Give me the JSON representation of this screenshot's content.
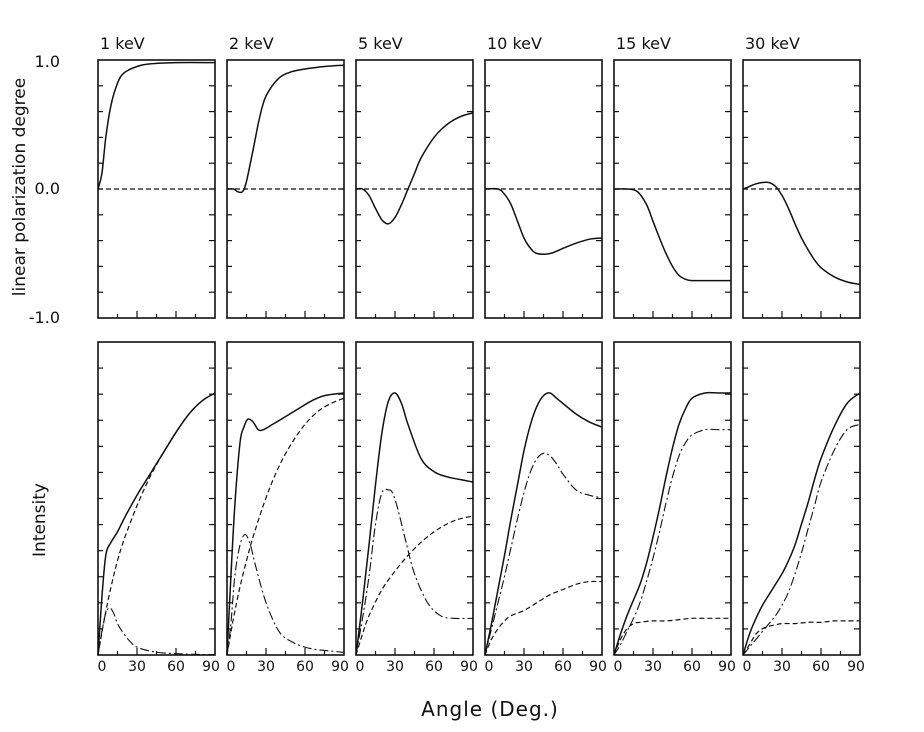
{
  "chart_data": {
    "type": "line",
    "xlabel": "Angle (Deg.)",
    "xticks": [
      "0",
      "30",
      "60",
      "90"
    ],
    "xlim": [
      0,
      90
    ],
    "top_row": {
      "ylabel": "linear polarization degree",
      "ylim": [
        -1.0,
        1.0
      ],
      "ytick_labels": [
        "1.0",
        "0.0",
        "-1.0"
      ]
    },
    "bottom_row": {
      "ylabel": "Intensity",
      "ylim": [
        0,
        1
      ]
    },
    "panels": [
      {
        "title": "1 keV",
        "polarization": {
          "x": [
            0,
            3,
            6,
            10,
            15,
            20,
            30,
            40,
            60,
            90
          ],
          "y": [
            0.0,
            0.12,
            0.4,
            0.65,
            0.82,
            0.9,
            0.95,
            0.97,
            0.98,
            0.98
          ]
        },
        "intensity": [
          {
            "style": "solid",
            "x": [
              0,
              3,
              6,
              10,
              15,
              20,
              30,
              40,
              50,
              60,
              70,
              80,
              90
            ],
            "y": [
              0,
              0.22,
              0.38,
              0.43,
              0.47,
              0.52,
              0.61,
              0.69,
              0.77,
              0.85,
              0.92,
              0.97,
              1.0
            ]
          },
          {
            "style": "dashed",
            "x": [
              0,
              5,
              10,
              15,
              20,
              30,
              40,
              50,
              60,
              70,
              80,
              90
            ],
            "y": [
              0,
              0.14,
              0.26,
              0.36,
              0.44,
              0.57,
              0.68,
              0.77,
              0.85,
              0.92,
              0.97,
              1.0
            ]
          },
          {
            "style": "dashdot",
            "x": [
              0,
              3,
              6,
              9,
              12,
              15,
              20,
              25,
              30,
              40,
              50,
              60,
              70,
              80,
              90
            ],
            "y": [
              0,
              0.09,
              0.16,
              0.18,
              0.16,
              0.12,
              0.08,
              0.05,
              0.03,
              0.015,
              0.008,
              0.005,
              0.003,
              0.002,
              0.002
            ]
          }
        ]
      },
      {
        "title": "2 keV",
        "polarization": {
          "x": [
            0,
            5,
            8,
            12,
            15,
            20,
            25,
            30,
            40,
            50,
            60,
            75,
            90
          ],
          "y": [
            0.0,
            0.0,
            -0.02,
            -0.02,
            0.06,
            0.3,
            0.55,
            0.72,
            0.86,
            0.91,
            0.93,
            0.95,
            0.96
          ]
        },
        "intensity": [
          {
            "style": "solid",
            "x": [
              0,
              3,
              6,
              10,
              13,
              16,
              20,
              24,
              28,
              35,
              45,
              55,
              65,
              75,
              90
            ],
            "y": [
              0,
              0.3,
              0.57,
              0.81,
              0.87,
              0.9,
              0.89,
              0.86,
              0.86,
              0.88,
              0.91,
              0.94,
              0.97,
              0.99,
              1.0
            ]
          },
          {
            "style": "dashed",
            "x": [
              0,
              5,
              10,
              15,
              20,
              30,
              40,
              50,
              60,
              70,
              80,
              90
            ],
            "y": [
              0,
              0.14,
              0.26,
              0.36,
              0.45,
              0.6,
              0.72,
              0.81,
              0.88,
              0.93,
              0.96,
              0.98
            ]
          },
          {
            "style": "dashdot",
            "x": [
              0,
              3,
              6,
              10,
              14,
              18,
              22,
              30,
              40,
              50,
              60,
              70,
              80,
              90
            ],
            "y": [
              0,
              0.12,
              0.3,
              0.42,
              0.46,
              0.42,
              0.34,
              0.2,
              0.09,
              0.05,
              0.03,
              0.02,
              0.015,
              0.01
            ]
          }
        ]
      },
      {
        "title": "5 keV",
        "polarization": {
          "x": [
            0,
            5,
            10,
            15,
            20,
            25,
            30,
            35,
            40,
            45,
            50,
            60,
            70,
            80,
            90
          ],
          "y": [
            0.0,
            0.0,
            -0.05,
            -0.15,
            -0.24,
            -0.27,
            -0.22,
            -0.12,
            0.0,
            0.12,
            0.24,
            0.4,
            0.5,
            0.56,
            0.59
          ]
        },
        "intensity": [
          {
            "style": "solid",
            "x": [
              0,
              5,
              10,
              15,
              20,
              25,
              30,
              35,
              40,
              50,
              60,
              70,
              80,
              90
            ],
            "y": [
              0,
              0.2,
              0.42,
              0.65,
              0.85,
              0.97,
              1.0,
              0.96,
              0.88,
              0.75,
              0.7,
              0.68,
              0.67,
              0.66
            ]
          },
          {
            "style": "dashdot",
            "x": [
              0,
              5,
              10,
              15,
              20,
              25,
              28,
              32,
              38,
              45,
              55,
              65,
              75,
              90
            ],
            "y": [
              0,
              0.14,
              0.3,
              0.5,
              0.62,
              0.63,
              0.62,
              0.56,
              0.44,
              0.31,
              0.2,
              0.15,
              0.14,
              0.14
            ]
          },
          {
            "style": "dashed",
            "x": [
              0,
              5,
              10,
              20,
              30,
              40,
              50,
              60,
              70,
              80,
              90
            ],
            "y": [
              0,
              0.08,
              0.15,
              0.25,
              0.32,
              0.38,
              0.43,
              0.47,
              0.5,
              0.52,
              0.53
            ]
          }
        ]
      },
      {
        "title": "10 keV",
        "polarization": {
          "x": [
            0,
            10,
            15,
            20,
            25,
            30,
            35,
            40,
            50,
            60,
            70,
            80,
            90
          ],
          "y": [
            0.0,
            0.0,
            -0.04,
            -0.12,
            -0.25,
            -0.38,
            -0.46,
            -0.5,
            -0.5,
            -0.46,
            -0.42,
            -0.39,
            -0.38
          ]
        },
        "intensity": [
          {
            "style": "solid",
            "x": [
              0,
              5,
              10,
              15,
              20,
              25,
              30,
              35,
              40,
              45,
              50,
              55,
              60,
              70,
              80,
              90
            ],
            "y": [
              0,
              0.12,
              0.25,
              0.38,
              0.52,
              0.65,
              0.78,
              0.88,
              0.95,
              0.99,
              1.0,
              0.98,
              0.96,
              0.92,
              0.89,
              0.87
            ]
          },
          {
            "style": "dashdot",
            "x": [
              0,
              5,
              10,
              15,
              20,
              25,
              30,
              35,
              40,
              45,
              50,
              55,
              60,
              70,
              80,
              90
            ],
            "y": [
              0,
              0.1,
              0.2,
              0.3,
              0.41,
              0.52,
              0.62,
              0.7,
              0.75,
              0.77,
              0.76,
              0.73,
              0.69,
              0.63,
              0.61,
              0.6
            ]
          },
          {
            "style": "dashed",
            "x": [
              0,
              5,
              10,
              15,
              20,
              30,
              40,
              50,
              60,
              70,
              80,
              90
            ],
            "y": [
              0,
              0.06,
              0.1,
              0.13,
              0.15,
              0.17,
              0.2,
              0.23,
              0.25,
              0.27,
              0.28,
              0.28
            ]
          }
        ]
      },
      {
        "title": "15 keV",
        "polarization": {
          "x": [
            0,
            10,
            18,
            25,
            30,
            35,
            40,
            45,
            50,
            55,
            60,
            70,
            80,
            90
          ],
          "y": [
            0.0,
            0.0,
            -0.02,
            -0.12,
            -0.25,
            -0.38,
            -0.5,
            -0.6,
            -0.67,
            -0.7,
            -0.71,
            -0.71,
            -0.71,
            -0.71
          ]
        },
        "intensity": [
          {
            "style": "solid",
            "x": [
              0,
              5,
              10,
              15,
              20,
              25,
              30,
              35,
              40,
              45,
              50,
              55,
              60,
              70,
              80,
              90
            ],
            "y": [
              0,
              0.08,
              0.15,
              0.21,
              0.27,
              0.35,
              0.45,
              0.56,
              0.68,
              0.79,
              0.88,
              0.94,
              0.98,
              1.0,
              1.0,
              1.0
            ]
          },
          {
            "style": "dashdot",
            "x": [
              0,
              5,
              10,
              15,
              20,
              25,
              30,
              35,
              40,
              45,
              50,
              55,
              60,
              70,
              80,
              90
            ],
            "y": [
              0,
              0.04,
              0.09,
              0.14,
              0.2,
              0.28,
              0.37,
              0.47,
              0.58,
              0.68,
              0.76,
              0.81,
              0.84,
              0.86,
              0.86,
              0.86
            ]
          },
          {
            "style": "dashed",
            "x": [
              0,
              5,
              10,
              15,
              20,
              30,
              40,
              50,
              60,
              70,
              80,
              90
            ],
            "y": [
              0,
              0.06,
              0.1,
              0.12,
              0.125,
              0.13,
              0.13,
              0.135,
              0.14,
              0.14,
              0.14,
              0.14
            ]
          }
        ]
      },
      {
        "title": "30 keV",
        "polarization": {
          "x": [
            0,
            5,
            10,
            15,
            20,
            25,
            30,
            35,
            40,
            45,
            50,
            55,
            60,
            70,
            80,
            90
          ],
          "y": [
            0.0,
            0.02,
            0.04,
            0.05,
            0.05,
            0.02,
            -0.05,
            -0.15,
            -0.27,
            -0.38,
            -0.47,
            -0.55,
            -0.61,
            -0.68,
            -0.72,
            -0.74
          ]
        },
        "intensity": [
          {
            "style": "solid",
            "x": [
              0,
              5,
              10,
              15,
              20,
              25,
              30,
              35,
              40,
              45,
              50,
              55,
              60,
              70,
              80,
              90
            ],
            "y": [
              0,
              0.08,
              0.14,
              0.19,
              0.23,
              0.27,
              0.31,
              0.36,
              0.42,
              0.5,
              0.58,
              0.67,
              0.75,
              0.87,
              0.96,
              1.0
            ]
          },
          {
            "style": "dashdot",
            "x": [
              0,
              5,
              10,
              15,
              20,
              25,
              30,
              35,
              40,
              45,
              50,
              55,
              60,
              70,
              80,
              90
            ],
            "y": [
              0,
              0.03,
              0.06,
              0.09,
              0.12,
              0.15,
              0.19,
              0.24,
              0.31,
              0.39,
              0.48,
              0.57,
              0.66,
              0.78,
              0.86,
              0.88
            ]
          },
          {
            "style": "dashed",
            "x": [
              0,
              5,
              10,
              15,
              20,
              25,
              30,
              40,
              50,
              60,
              70,
              80,
              90
            ],
            "y": [
              0,
              0.04,
              0.08,
              0.1,
              0.11,
              0.115,
              0.12,
              0.12,
              0.125,
              0.125,
              0.13,
              0.13,
              0.13
            ]
          }
        ]
      }
    ]
  }
}
